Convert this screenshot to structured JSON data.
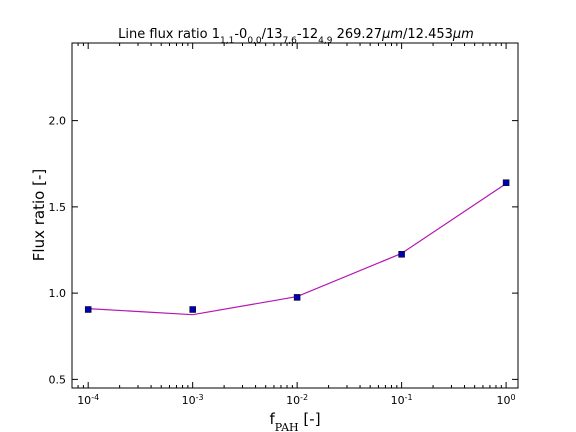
{
  "chart_data": {
    "type": "line",
    "title": {
      "prefix": "Line flux ratio 1",
      "sub1": "1,1",
      "part2": "-0",
      "sub2": "0,0",
      "part3": "/13",
      "sub3": "7,6",
      "part4": "-12",
      "sub4": "4,9",
      "part5": " 269.27",
      "unit1": "μm",
      "part6": "/12.453",
      "unit2": "μm"
    },
    "xlabel": {
      "base": "f",
      "sub": "PAH",
      "suffix": " [-]"
    },
    "ylabel": "Flux ratio [-]",
    "x_scale": "log",
    "xlim": [
      7e-05,
      1.3
    ],
    "ylim": [
      0.45,
      2.45
    ],
    "x_ticks": [
      {
        "value": 0.0001,
        "base": "10",
        "exp": "-4"
      },
      {
        "value": 0.001,
        "base": "10",
        "exp": "-3"
      },
      {
        "value": 0.01,
        "base": "10",
        "exp": "-2"
      },
      {
        "value": 0.1,
        "base": "10",
        "exp": "-1"
      },
      {
        "value": 1,
        "base": "10",
        "exp": "0"
      }
    ],
    "y_ticks": [
      {
        "value": 0.5,
        "label": "0.5"
      },
      {
        "value": 1.0,
        "label": "1.0"
      },
      {
        "value": 1.5,
        "label": "1.5"
      },
      {
        "value": 2.0,
        "label": "2.0"
      }
    ],
    "grid": false,
    "series": [
      {
        "style": "line",
        "color": "#b316b3",
        "points": [
          {
            "x": 0.0001,
            "y": 0.91
          },
          {
            "x": 0.001,
            "y": 0.875
          },
          {
            "x": 0.01,
            "y": 0.98
          },
          {
            "x": 0.1,
            "y": 1.23
          },
          {
            "x": 1,
            "y": 1.635
          }
        ]
      },
      {
        "style": "marker",
        "marker": "square",
        "color": "#0000b0",
        "points": [
          {
            "x": 0.0001,
            "y": 0.905
          },
          {
            "x": 0.001,
            "y": 0.905
          },
          {
            "x": 0.01,
            "y": 0.975
          },
          {
            "x": 0.1,
            "y": 1.225
          },
          {
            "x": 1,
            "y": 1.64
          }
        ]
      }
    ]
  }
}
